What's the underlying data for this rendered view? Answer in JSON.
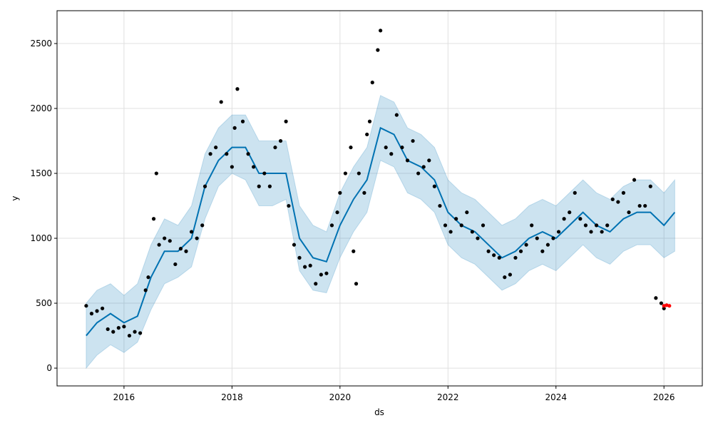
{
  "chart_data": {
    "type": "forecast",
    "x_label": "ds",
    "y_label": "y",
    "grid": true,
    "xlim": [
      2014.76,
      2026.71
    ],
    "ylim": [
      -137,
      2753
    ],
    "xticks": [
      2016,
      2018,
      2020,
      2022,
      2024,
      2026
    ],
    "yticks": [
      0,
      500,
      1000,
      1500,
      2000,
      2500
    ],
    "forecast": {
      "color": "#0072b2",
      "band_color": "#0072b2",
      "x": [
        2015.3,
        2015.5,
        2015.75,
        2016.0,
        2016.25,
        2016.5,
        2016.75,
        2017.0,
        2017.25,
        2017.5,
        2017.75,
        2018.0,
        2018.25,
        2018.5,
        2018.75,
        2019.0,
        2019.25,
        2019.5,
        2019.75,
        2020.0,
        2020.25,
        2020.5,
        2020.75,
        2021.0,
        2021.25,
        2021.5,
        2021.75,
        2022.0,
        2022.25,
        2022.5,
        2022.75,
        2023.0,
        2023.25,
        2023.5,
        2023.75,
        2024.0,
        2024.25,
        2024.5,
        2024.75,
        2025.0,
        2025.25,
        2025.5,
        2025.75,
        2026.0,
        2026.2
      ],
      "values": [
        250,
        350,
        420,
        350,
        400,
        700,
        900,
        900,
        1000,
        1400,
        1600,
        1700,
        1700,
        1500,
        1500,
        1500,
        1000,
        850,
        820,
        1100,
        1300,
        1450,
        1850,
        1800,
        1600,
        1550,
        1450,
        1200,
        1100,
        1050,
        950,
        850,
        900,
        1000,
        1050,
        1000,
        1100,
        1200,
        1100,
        1050,
        1150,
        1200,
        1200,
        1100,
        1200
      ],
      "lower": [
        0,
        100,
        180,
        120,
        200,
        450,
        650,
        700,
        780,
        1150,
        1400,
        1500,
        1450,
        1250,
        1250,
        1300,
        750,
        600,
        580,
        850,
        1050,
        1200,
        1600,
        1550,
        1350,
        1300,
        1200,
        950,
        850,
        800,
        700,
        600,
        650,
        750,
        800,
        750,
        850,
        950,
        850,
        800,
        900,
        950,
        950,
        850,
        900
      ],
      "upper": [
        500,
        600,
        650,
        560,
        650,
        950,
        1150,
        1100,
        1250,
        1650,
        1850,
        1950,
        1950,
        1750,
        1750,
        1750,
        1250,
        1100,
        1050,
        1350,
        1550,
        1700,
        2100,
        2050,
        1850,
        1800,
        1700,
        1450,
        1350,
        1300,
        1200,
        1100,
        1150,
        1250,
        1300,
        1250,
        1350,
        1450,
        1350,
        1300,
        1400,
        1450,
        1450,
        1350,
        1450
      ]
    },
    "points": {
      "color": "#000000",
      "x": [
        2015.3,
        2015.4,
        2015.5,
        2015.6,
        2015.7,
        2015.8,
        2015.9,
        2016.0,
        2016.1,
        2016.2,
        2016.3,
        2016.4,
        2016.45,
        2016.55,
        2016.6,
        2016.65,
        2016.75,
        2016.85,
        2016.95,
        2017.05,
        2017.15,
        2017.25,
        2017.35,
        2017.45,
        2017.5,
        2017.6,
        2017.7,
        2017.8,
        2017.9,
        2018.0,
        2018.05,
        2018.1,
        2018.2,
        2018.3,
        2018.4,
        2018.5,
        2018.6,
        2018.7,
        2018.8,
        2018.9,
        2019.0,
        2019.05,
        2019.15,
        2019.25,
        2019.35,
        2019.45,
        2019.55,
        2019.65,
        2019.75,
        2019.85,
        2019.95,
        2020.0,
        2020.1,
        2020.2,
        2020.25,
        2020.3,
        2020.35,
        2020.45,
        2020.5,
        2020.55,
        2020.6,
        2020.7,
        2020.75,
        2020.85,
        2020.95,
        2021.05,
        2021.15,
        2021.25,
        2021.35,
        2021.45,
        2021.55,
        2021.65,
        2021.75,
        2021.85,
        2021.95,
        2022.05,
        2022.15,
        2022.25,
        2022.35,
        2022.45,
        2022.55,
        2022.65,
        2022.75,
        2022.85,
        2022.95,
        2023.05,
        2023.15,
        2023.25,
        2023.35,
        2023.45,
        2023.55,
        2023.65,
        2023.75,
        2023.85,
        2023.95,
        2024.05,
        2024.15,
        2024.25,
        2024.35,
        2024.45,
        2024.55,
        2024.65,
        2024.75,
        2024.85,
        2024.95,
        2025.05,
        2025.15,
        2025.25,
        2025.35,
        2025.45,
        2025.55,
        2025.65,
        2025.75,
        2025.85,
        2025.95,
        2026.0
      ],
      "values": [
        480,
        420,
        440,
        460,
        300,
        280,
        310,
        320,
        250,
        280,
        270,
        600,
        700,
        1150,
        1500,
        950,
        1000,
        980,
        800,
        920,
        900,
        1050,
        1000,
        1100,
        1400,
        1650,
        1700,
        2050,
        1650,
        1550,
        1850,
        2150,
        1900,
        1650,
        1550,
        1400,
        1500,
        1400,
        1700,
        1750,
        1900,
        1250,
        950,
        850,
        780,
        790,
        650,
        720,
        730,
        1100,
        1200,
        1350,
        1500,
        1700,
        900,
        650,
        1500,
        1350,
        1800,
        1900,
        2200,
        2450,
        2600,
        1700,
        1650,
        1950,
        1700,
        1600,
        1750,
        1500,
        1550,
        1600,
        1400,
        1250,
        1100,
        1050,
        1150,
        1100,
        1200,
        1050,
        1000,
        1100,
        900,
        870,
        850,
        700,
        720,
        850,
        900,
        950,
        1100,
        1000,
        900,
        950,
        1000,
        1050,
        1150,
        1200,
        1350,
        1150,
        1100,
        1050,
        1100,
        1050,
        1100,
        1300,
        1280,
        1350,
        1200,
        1450,
        1250,
        1250,
        1400,
        540,
        500,
        460
      ]
    },
    "new_points": {
      "color": "#ff0000",
      "x": [
        2026.0,
        2026.05,
        2026.1
      ],
      "values": [
        480,
        485,
        480
      ]
    }
  }
}
